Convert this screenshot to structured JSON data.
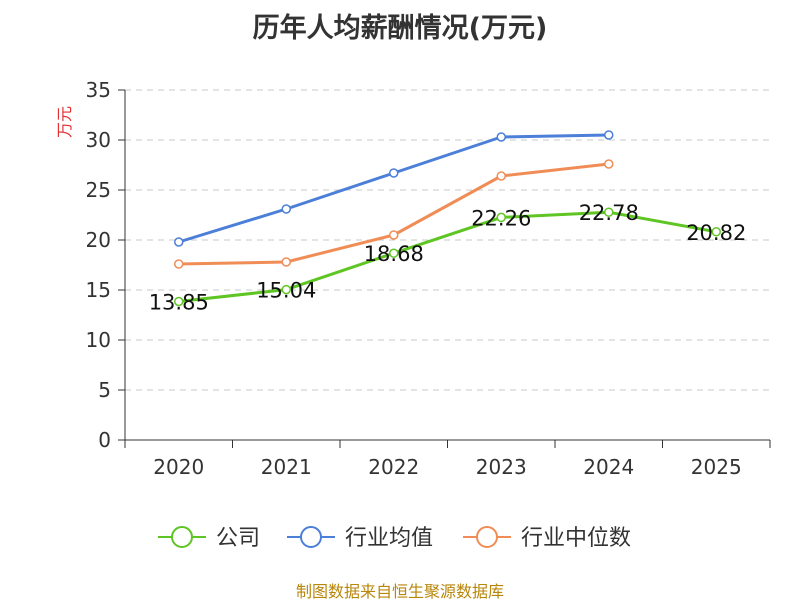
{
  "chart_data": {
    "type": "line",
    "title": "历年人均薪酬情况(万元)",
    "ylabel": "万元",
    "xlabel": "",
    "ylim": [
      0,
      35
    ],
    "yticks": [
      0,
      5,
      10,
      15,
      20,
      25,
      30,
      35
    ],
    "categories": [
      "2020",
      "2021",
      "2022",
      "2023",
      "2024",
      "2025"
    ],
    "series": [
      {
        "name": "公司",
        "color": "#5ec523",
        "values": [
          13.85,
          15.04,
          18.68,
          22.26,
          22.78,
          20.82
        ],
        "labels": [
          "13.85",
          "15.04",
          "18.68",
          "22.26",
          "22.78",
          "20.82"
        ]
      },
      {
        "name": "行业均值",
        "color": "#4b7fd8",
        "values": [
          19.8,
          23.1,
          26.7,
          30.3,
          30.5,
          null
        ]
      },
      {
        "name": "行业中位数",
        "color": "#f08d57",
        "values": [
          17.6,
          17.8,
          20.5,
          26.4,
          27.6,
          null
        ]
      }
    ],
    "grid": true,
    "legend": "bottom"
  },
  "source": "制图数据来自恒生聚源数据库"
}
